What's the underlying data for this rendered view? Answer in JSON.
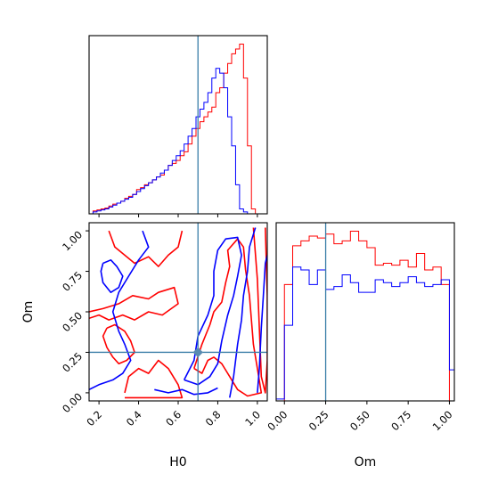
{
  "chart_data": {
    "type": "corner",
    "parameters": [
      "H0",
      "Om"
    ],
    "truth": {
      "H0": 0.7,
      "Om": 0.25
    },
    "colors": {
      "series_a": "#ff0000",
      "series_b": "#0000ff",
      "truth": "#3a7ea8"
    },
    "panels": [
      {
        "id": "h0_marginal",
        "type": "histogram",
        "xlim": [
          0.15,
          1.05
        ],
        "bin_edges": [
          0.17,
          0.19,
          0.21,
          0.23,
          0.25,
          0.27,
          0.29,
          0.31,
          0.33,
          0.35,
          0.37,
          0.39,
          0.41,
          0.43,
          0.45,
          0.47,
          0.49,
          0.51,
          0.53,
          0.55,
          0.57,
          0.59,
          0.61,
          0.63,
          0.65,
          0.67,
          0.69,
          0.71,
          0.73,
          0.75,
          0.77,
          0.79,
          0.81,
          0.83,
          0.85,
          0.87,
          0.89,
          0.91,
          0.93,
          0.95,
          0.97,
          0.99,
          1.01,
          1.03,
          1.05
        ],
        "series": [
          {
            "color": "red",
            "values": [
              3,
              4,
              5,
              6,
              8,
              10,
              11,
              13,
              16,
              18,
              20,
              25,
              27,
              30,
              32,
              35,
              38,
              40,
              45,
              50,
              52,
              55,
              60,
              64,
              72,
              80,
              88,
              95,
              100,
              105,
              110,
              125,
              130,
              145,
              155,
              165,
              170,
              175,
              140,
              70,
              5,
              0,
              0,
              0
            ]
          },
          {
            "color": "blue",
            "values": [
              2,
              3,
              4,
              5,
              7,
              9,
              11,
              13,
              15,
              17,
              20,
              23,
              26,
              29,
              32,
              35,
              38,
              42,
              45,
              50,
              55,
              60,
              65,
              72,
              80,
              88,
              100,
              108,
              115,
              125,
              140,
              150,
              145,
              130,
              100,
              70,
              30,
              5,
              2,
              0,
              0,
              0,
              0,
              0
            ]
          }
        ]
      },
      {
        "id": "om_marginal",
        "type": "histogram",
        "xlim": [
          -0.05,
          1.03
        ],
        "bin_edges": [
          -0.05,
          0.0,
          0.05,
          0.1,
          0.15,
          0.2,
          0.25,
          0.3,
          0.35,
          0.4,
          0.45,
          0.5,
          0.55,
          0.6,
          0.65,
          0.7,
          0.75,
          0.8,
          0.85,
          0.9,
          0.95,
          1.0,
          1.03
        ],
        "series": [
          {
            "color": "red",
            "values": [
              0,
              120,
              160,
              165,
              170,
              168,
              172,
              162,
              165,
              175,
              165,
              158,
              140,
              142,
              140,
              145,
              138,
              152,
              135,
              138,
              120,
              0
            ]
          },
          {
            "color": "blue",
            "values": [
              2,
              78,
              138,
              135,
              120,
              135,
              115,
              118,
              130,
              122,
              112,
              112,
              125,
              122,
              118,
              122,
              128,
              122,
              118,
              120,
              125,
              32
            ]
          }
        ]
      },
      {
        "id": "joint",
        "type": "contour",
        "xlim": [
          0.15,
          1.05
        ],
        "ylim": [
          -0.05,
          1.05
        ],
        "contours": {
          "red": [
            [
              [
                0.15,
                0.5
              ],
              [
                0.22,
                0.52
              ],
              [
                0.3,
                0.55
              ],
              [
                0.37,
                0.6
              ],
              [
                0.45,
                0.58
              ],
              [
                0.5,
                0.62
              ],
              [
                0.58,
                0.65
              ],
              [
                0.6,
                0.55
              ],
              [
                0.52,
                0.48
              ],
              [
                0.45,
                0.5
              ],
              [
                0.38,
                0.45
              ],
              [
                0.32,
                0.48
              ],
              [
                0.25,
                0.45
              ],
              [
                0.2,
                0.48
              ],
              [
                0.15,
                0.46
              ]
            ],
            [
              [
                0.24,
                0.4
              ],
              [
                0.28,
                0.42
              ],
              [
                0.33,
                0.38
              ],
              [
                0.36,
                0.32
              ],
              [
                0.38,
                0.25
              ],
              [
                0.34,
                0.2
              ],
              [
                0.3,
                0.18
              ],
              [
                0.27,
                0.22
              ],
              [
                0.24,
                0.28
              ],
              [
                0.22,
                0.35
              ],
              [
                0.24,
                0.4
              ]
            ],
            [
              [
                0.33,
                0.0
              ],
              [
                0.35,
                0.1
              ],
              [
                0.4,
                0.15
              ],
              [
                0.45,
                0.12
              ],
              [
                0.5,
                0.2
              ],
              [
                0.55,
                0.15
              ],
              [
                0.6,
                0.05
              ],
              [
                0.62,
                -0.03
              ],
              [
                0.33,
                -0.03
              ]
            ],
            [
              [
                0.25,
                1.0
              ],
              [
                0.28,
                0.9
              ],
              [
                0.33,
                0.85
              ],
              [
                0.38,
                0.8
              ],
              [
                0.45,
                0.84
              ],
              [
                0.5,
                0.78
              ],
              [
                0.55,
                0.85
              ],
              [
                0.6,
                0.9
              ],
              [
                0.62,
                1.0
              ]
            ],
            [
              [
                0.68,
                0.15
              ],
              [
                0.72,
                0.3
              ],
              [
                0.76,
                0.42
              ],
              [
                0.78,
                0.5
              ],
              [
                0.82,
                0.56
              ],
              [
                0.84,
                0.68
              ],
              [
                0.86,
                0.78
              ],
              [
                0.85,
                0.88
              ],
              [
                0.9,
                0.95
              ],
              [
                0.93,
                0.9
              ],
              [
                0.94,
                0.76
              ],
              [
                0.96,
                0.6
              ],
              [
                0.97,
                0.45
              ],
              [
                0.98,
                0.3
              ],
              [
                1.0,
                0.15
              ],
              [
                1.02,
                0.0
              ],
              [
                0.95,
                -0.02
              ],
              [
                0.9,
                0.02
              ],
              [
                0.86,
                0.1
              ],
              [
                0.82,
                0.18
              ],
              [
                0.78,
                0.22
              ],
              [
                0.75,
                0.2
              ],
              [
                0.72,
                0.12
              ],
              [
                0.68,
                0.15
              ]
            ],
            [
              [
                0.98,
                1.02
              ],
              [
                1.0,
                0.7
              ],
              [
                1.01,
                0.4
              ],
              [
                1.02,
                0.1
              ],
              [
                1.04,
                0.0
              ],
              [
                1.05,
                0.2
              ],
              [
                1.05,
                0.6
              ],
              [
                1.04,
                1.02
              ]
            ]
          ],
          "blue": [
            [
              [
                0.15,
                0.02
              ],
              [
                0.2,
                0.05
              ],
              [
                0.27,
                0.08
              ],
              [
                0.32,
                0.12
              ],
              [
                0.36,
                0.2
              ],
              [
                0.33,
                0.3
              ],
              [
                0.3,
                0.38
              ],
              [
                0.27,
                0.5
              ],
              [
                0.3,
                0.62
              ],
              [
                0.35,
                0.72
              ],
              [
                0.4,
                0.82
              ],
              [
                0.45,
                0.9
              ],
              [
                0.42,
                1.0
              ]
            ],
            [
              [
                0.22,
                0.8
              ],
              [
                0.26,
                0.82
              ],
              [
                0.29,
                0.78
              ],
              [
                0.32,
                0.72
              ],
              [
                0.3,
                0.65
              ],
              [
                0.26,
                0.62
              ],
              [
                0.22,
                0.68
              ],
              [
                0.21,
                0.75
              ],
              [
                0.22,
                0.8
              ]
            ],
            [
              [
                0.48,
                0.02
              ],
              [
                0.55,
                0.0
              ],
              [
                0.62,
                0.02
              ],
              [
                0.68,
                -0.01
              ],
              [
                0.75,
                0.0
              ],
              [
                0.8,
                0.03
              ]
            ],
            [
              [
                0.63,
                0.08
              ],
              [
                0.68,
                0.2
              ],
              [
                0.7,
                0.35
              ],
              [
                0.75,
                0.48
              ],
              [
                0.78,
                0.6
              ],
              [
                0.78,
                0.75
              ],
              [
                0.8,
                0.88
              ],
              [
                0.84,
                0.95
              ],
              [
                0.9,
                0.96
              ],
              [
                0.92,
                0.85
              ],
              [
                0.9,
                0.72
              ],
              [
                0.88,
                0.6
              ],
              [
                0.85,
                0.48
              ],
              [
                0.82,
                0.32
              ],
              [
                0.8,
                0.18
              ],
              [
                0.76,
                0.1
              ],
              [
                0.7,
                0.05
              ],
              [
                0.63,
                0.08
              ]
            ],
            [
              [
                0.86,
                -0.03
              ],
              [
                0.88,
                0.1
              ],
              [
                0.9,
                0.3
              ],
              [
                0.92,
                0.45
              ],
              [
                0.93,
                0.6
              ],
              [
                0.95,
                0.75
              ],
              [
                0.96,
                0.9
              ],
              [
                0.99,
                1.02
              ]
            ],
            [
              [
                1.0,
                0.0
              ],
              [
                1.01,
                0.15
              ],
              [
                1.02,
                0.4
              ],
              [
                1.03,
                0.6
              ],
              [
                1.04,
                0.8
              ],
              [
                1.05,
                0.85
              ]
            ]
          ]
        }
      }
    ],
    "xlabel_left": "H0",
    "xlabel_right": "Om",
    "ylabel": "Om",
    "ticks": {
      "h0": [
        "0.2",
        "0.4",
        "0.6",
        "0.8",
        "1.0"
      ],
      "om_y": [
        "0.00",
        "0.25",
        "0.50",
        "0.75",
        "1.00"
      ],
      "om_x": [
        "0.00",
        "0.25",
        "0.50",
        "0.75",
        "1.00"
      ]
    }
  }
}
